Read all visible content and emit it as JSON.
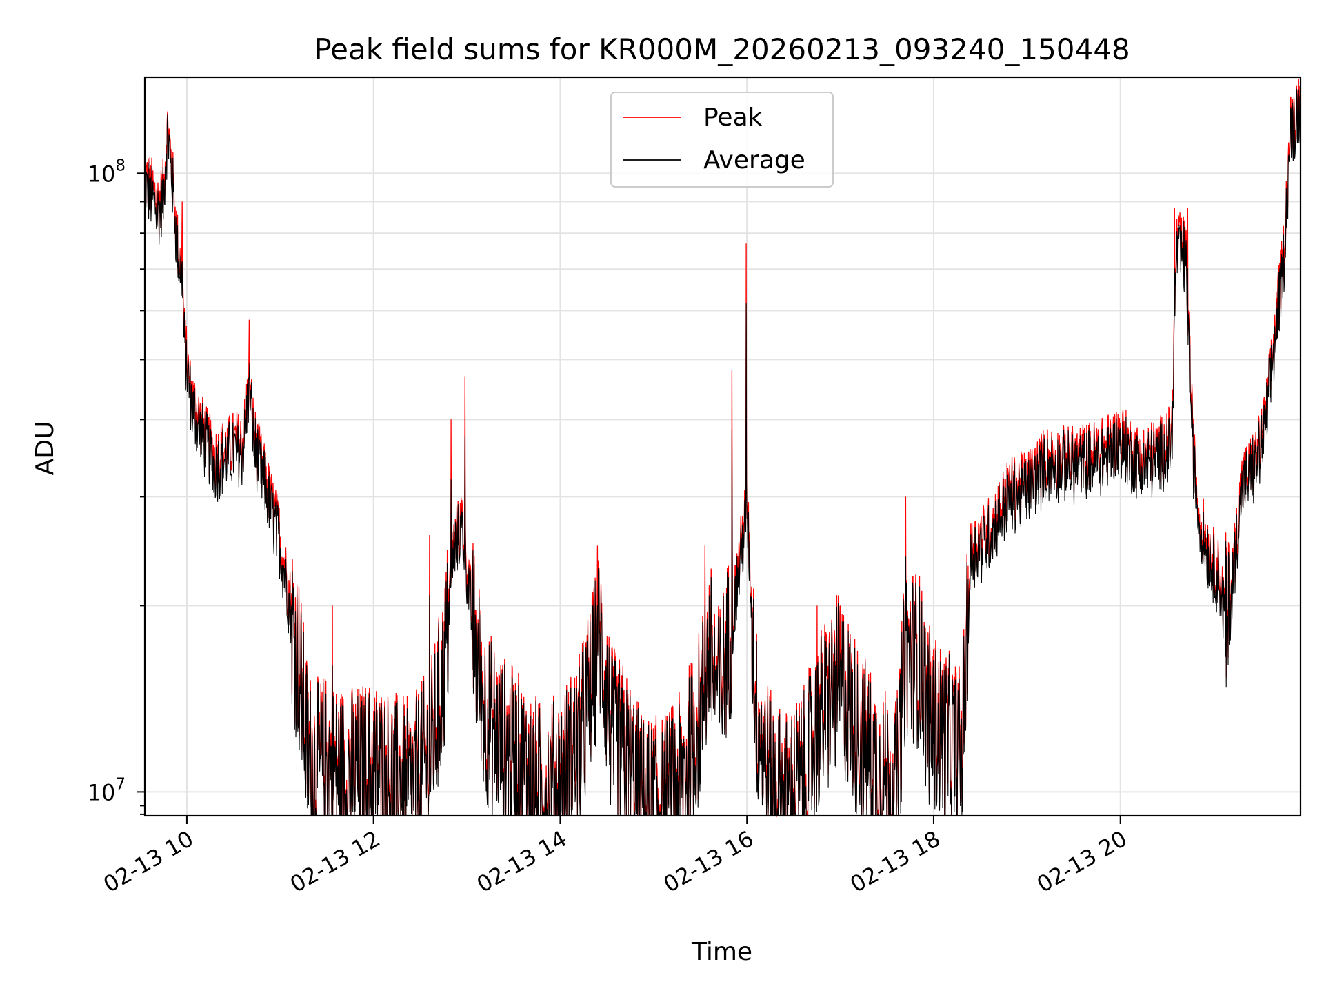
{
  "chart_data": {
    "type": "line",
    "title": "Peak field sums for KR000M_20260213_093240_150448",
    "xlabel": "Time",
    "ylabel": "ADU",
    "yscale": "log",
    "grid": true,
    "legend_position": "upper-center",
    "x_unit": "hours (decimal, 2026-02-13)",
    "xlim": [
      9.55,
      21.93
    ],
    "ylim": [
      9150000,
      143000000
    ],
    "x_ticks": [
      {
        "value": 10,
        "label": "02-13 10"
      },
      {
        "value": 12,
        "label": "02-13 12"
      },
      {
        "value": 14,
        "label": "02-13 14"
      },
      {
        "value": 16,
        "label": "02-13 16"
      },
      {
        "value": 18,
        "label": "02-13 18"
      },
      {
        "value": 20,
        "label": "02-13 20"
      }
    ],
    "y_major_ticks": [
      {
        "value": 10000000,
        "base": "10",
        "exp": "7"
      },
      {
        "value": 100000000,
        "base": "10",
        "exp": "8"
      }
    ],
    "y_minor_ticks": [
      20000000,
      30000000,
      40000000,
      50000000,
      60000000,
      70000000,
      80000000,
      90000000
    ],
    "series": [
      {
        "name": "Peak",
        "color": "#ff0000",
        "envelope_noise": 0.2,
        "spikes": [
          [
            9.95,
            90000000
          ],
          [
            10.67,
            58000000
          ],
          [
            11.56,
            20000000
          ],
          [
            12.6,
            26000000
          ],
          [
            12.83,
            40000000
          ],
          [
            12.98,
            47000000
          ],
          [
            14.4,
            25000000
          ],
          [
            15.55,
            25000000
          ],
          [
            15.84,
            48000000
          ],
          [
            15.99,
            77000000
          ],
          [
            16.75,
            20000000
          ],
          [
            17.0,
            20000000
          ],
          [
            17.7,
            30000000
          ],
          [
            20.58,
            88000000
          ],
          [
            20.72,
            88000000
          ]
        ],
        "points": [
          [
            9.55,
            99000000
          ],
          [
            9.6,
            97000000
          ],
          [
            9.7,
            90000000
          ],
          [
            9.75,
            95000000
          ],
          [
            9.78,
            115000000
          ],
          [
            9.8,
            120000000
          ],
          [
            9.85,
            98000000
          ],
          [
            9.9,
            78000000
          ],
          [
            9.95,
            70000000
          ],
          [
            9.97,
            56000000
          ],
          [
            10.0,
            50000000
          ],
          [
            10.05,
            44000000
          ],
          [
            10.2,
            38000000
          ],
          [
            10.3,
            35000000
          ],
          [
            10.4,
            36000000
          ],
          [
            10.5,
            37000000
          ],
          [
            10.6,
            37000000
          ],
          [
            10.67,
            47000000
          ],
          [
            10.72,
            38000000
          ],
          [
            10.8,
            34000000
          ],
          [
            10.9,
            30000000
          ],
          [
            11.0,
            26000000
          ],
          [
            11.1,
            21000000
          ],
          [
            11.2,
            17000000
          ],
          [
            11.3,
            12000000
          ],
          [
            11.4,
            11500000
          ],
          [
            11.5,
            11800000
          ],
          [
            11.6,
            11300000
          ],
          [
            11.8,
            11200000
          ],
          [
            12.0,
            11500000
          ],
          [
            12.2,
            11000000
          ],
          [
            12.4,
            10600000
          ],
          [
            12.6,
            12000000
          ],
          [
            12.75,
            16000000
          ],
          [
            12.85,
            25000000
          ],
          [
            12.95,
            28000000
          ],
          [
            13.05,
            20000000
          ],
          [
            13.2,
            14000000
          ],
          [
            13.4,
            12500000
          ],
          [
            13.6,
            11500000
          ],
          [
            13.8,
            10500000
          ],
          [
            14.0,
            11000000
          ],
          [
            14.2,
            12500000
          ],
          [
            14.35,
            16000000
          ],
          [
            14.42,
            19000000
          ],
          [
            14.55,
            13000000
          ],
          [
            14.7,
            12000000
          ],
          [
            14.9,
            10000000
          ],
          [
            15.1,
            10000000
          ],
          [
            15.3,
            11000000
          ],
          [
            15.5,
            14000000
          ],
          [
            15.6,
            18000000
          ],
          [
            15.7,
            15000000
          ],
          [
            15.85,
            20000000
          ],
          [
            16.0,
            30000000
          ],
          [
            16.1,
            14000000
          ],
          [
            16.25,
            11000000
          ],
          [
            16.4,
            10200000
          ],
          [
            16.6,
            11000000
          ],
          [
            16.8,
            14000000
          ],
          [
            17.0,
            16000000
          ],
          [
            17.2,
            13000000
          ],
          [
            17.4,
            11500000
          ],
          [
            17.6,
            10500000
          ],
          [
            17.7,
            18000000
          ],
          [
            17.85,
            17000000
          ],
          [
            17.95,
            14000000
          ],
          [
            18.1,
            13000000
          ],
          [
            18.3,
            12000000
          ],
          [
            18.4,
            25000000
          ],
          [
            18.6,
            27000000
          ],
          [
            18.8,
            31000000
          ],
          [
            19.0,
            32000000
          ],
          [
            19.2,
            35000000
          ],
          [
            19.5,
            35000000
          ],
          [
            19.8,
            36000000
          ],
          [
            20.0,
            38000000
          ],
          [
            20.2,
            35000000
          ],
          [
            20.4,
            36000000
          ],
          [
            20.55,
            38000000
          ],
          [
            20.6,
            78000000
          ],
          [
            20.7,
            76000000
          ],
          [
            20.78,
            36000000
          ],
          [
            20.85,
            28000000
          ],
          [
            20.95,
            25000000
          ],
          [
            21.05,
            23000000
          ],
          [
            21.15,
            19000000
          ],
          [
            21.3,
            32000000
          ],
          [
            21.45,
            35000000
          ],
          [
            21.55,
            40000000
          ],
          [
            21.65,
            55000000
          ],
          [
            21.75,
            75000000
          ],
          [
            21.82,
            120000000
          ],
          [
            21.93,
            135000000
          ]
        ]
      },
      {
        "name": "Average",
        "color": "#000000",
        "points": []
      }
    ]
  }
}
